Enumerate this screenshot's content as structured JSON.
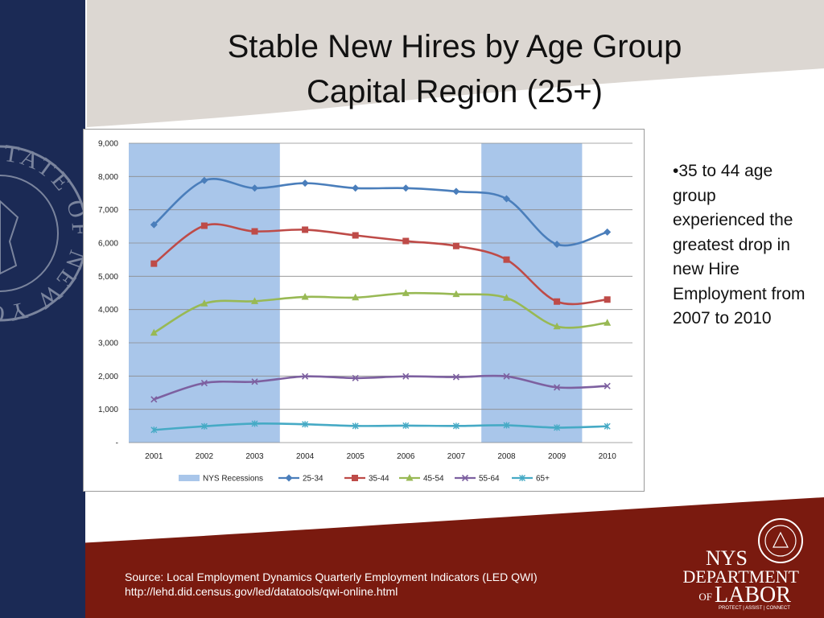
{
  "slide": {
    "title_line1": "Stable New Hires by Age Group",
    "title_line2": "Capital Region (25+)",
    "bullet": "•35 to 44 age group experienced the greatest drop in new Hire Employment from 2007 to 2010",
    "source_line1": "Source: Local Employment Dynamics Quarterly Employment Indicators (LED QWI)",
    "source_line2": "http://lehd.did.census.gov/led/datatools/qwi-online.html",
    "seal_text": "STATE OF NEW YORK DEPARTMENT OF LABOR",
    "logo": {
      "line1": "NYS",
      "line2": "DEPARTMENT",
      "line3_small": "OF",
      "line3": "LABOR",
      "tagline": "PROTECT | ASSIST | CONNECT"
    },
    "colors": {
      "navy": "#1b2a55",
      "maroon": "#7a1a0f",
      "recession": "#a9c6ea"
    }
  },
  "chart_data": {
    "type": "line",
    "categories": [
      "2001",
      "2002",
      "2003",
      "2004",
      "2005",
      "2006",
      "2007",
      "2008",
      "2009",
      "2010"
    ],
    "ylim": [
      0,
      9000
    ],
    "yticks": [
      0,
      1000,
      2000,
      3000,
      4000,
      5000,
      6000,
      7000,
      8000,
      9000
    ],
    "ytick_labels": [
      "-",
      "1,000",
      "2,000",
      "3,000",
      "4,000",
      "5,000",
      "6,000",
      "7,000",
      "8,000",
      "9,000"
    ],
    "grid": true,
    "legend_position": "bottom",
    "recessions": {
      "name": "NYS Recessions",
      "color": "#a9c6ea",
      "ranges": [
        [
          "2001",
          "2003"
        ],
        [
          "2008",
          "2009"
        ]
      ]
    },
    "series": [
      {
        "name": "25-34",
        "color": "#4a7ebb",
        "marker": "diamond",
        "values": [
          6550,
          7880,
          7650,
          7800,
          7650,
          7650,
          7550,
          7330,
          5960,
          6330
        ]
      },
      {
        "name": "35-44",
        "color": "#be4b48",
        "marker": "square",
        "values": [
          5380,
          6520,
          6350,
          6400,
          6230,
          6060,
          5910,
          5500,
          4240,
          4300
        ]
      },
      {
        "name": "45-54",
        "color": "#98b954",
        "marker": "triangle",
        "values": [
          3300,
          4180,
          4250,
          4380,
          4360,
          4490,
          4460,
          4350,
          3490,
          3600
        ]
      },
      {
        "name": "55-64",
        "color": "#7d60a0",
        "marker": "x",
        "values": [
          1300,
          1790,
          1830,
          1990,
          1940,
          1990,
          1970,
          1990,
          1660,
          1700
        ]
      },
      {
        "name": "65+",
        "color": "#46aac5",
        "marker": "star",
        "values": [
          380,
          490,
          570,
          550,
          500,
          510,
          500,
          520,
          450,
          490
        ]
      }
    ]
  }
}
